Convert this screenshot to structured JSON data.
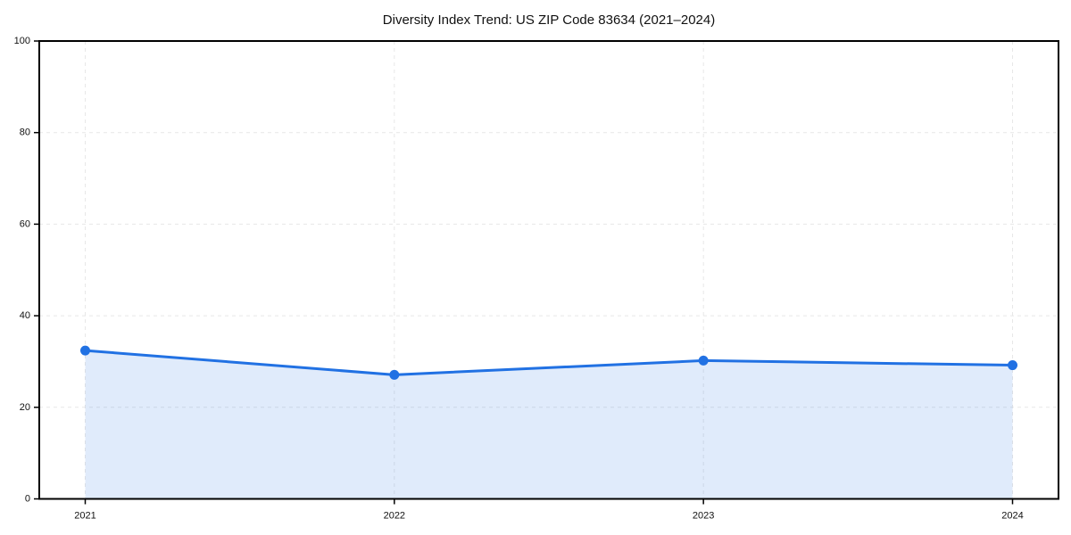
{
  "chart_data": {
    "type": "line",
    "subtype": "area-filled-line-with-markers",
    "title": "Diversity Index Trend: US ZIP Code 83634 (2021–2024)",
    "categories": [
      "2021",
      "2022",
      "2023",
      "2024"
    ],
    "values": [
      32.4,
      27.1,
      30.2,
      29.2
    ],
    "xlabel": "",
    "ylabel": "",
    "ylim": [
      0,
      100
    ],
    "yticks": [
      0,
      20,
      40,
      60,
      80,
      100
    ],
    "grid": "dashed-both-axes",
    "legend_position": "none",
    "colors": {
      "line": "#2171e3",
      "marker": "#2171e3",
      "area_fill": "#2171e3",
      "area_fill_opacity": "0.14",
      "grid": "#e7e7e7",
      "spine": "#000000",
      "text": "#111111",
      "background": "#ffffff"
    }
  }
}
